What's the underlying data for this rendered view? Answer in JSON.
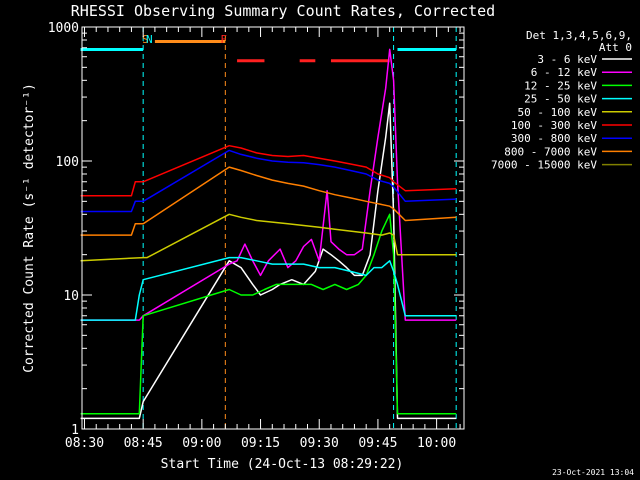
{
  "chart_data": {
    "type": "line",
    "title": "RHESSI Observing Summary Count Rates, Corrected",
    "xlabel": "Start Time (24-Oct-13 08:29:22)",
    "ylabel": "Corrected Count Rate (s⁻¹ detector⁻¹)",
    "y_scale": "log",
    "ylim": [
      1,
      1000
    ],
    "y_ticks": [
      {
        "value": 1,
        "label": "1"
      },
      {
        "value": 10,
        "label": "10"
      },
      {
        "value": 100,
        "label": "100"
      },
      {
        "value": 1000,
        "label": "1000"
      }
    ],
    "x_range": [
      "08:29:22",
      "10:07:00"
    ],
    "x_ticks": [
      "08:30",
      "08:45",
      "09:00",
      "09:15",
      "09:30",
      "09:45",
      "10:00"
    ],
    "legend": {
      "placement": "top-right",
      "header": [
        "Det 1,3,4,5,6,9,",
        "Att 0"
      ]
    },
    "flags": [
      {
        "label": "S",
        "time": "08:46",
        "color": "#ff8c1a"
      },
      {
        "label": "N",
        "time": "08:47",
        "color": "#00ffff"
      },
      {
        "label": "F",
        "time": "09:06",
        "color": "#ff2020"
      }
    ],
    "flag_bars": [
      {
        "name": "SAA",
        "color": "#ff8c1a",
        "intervals": [
          [
            "08:48",
            "09:06"
          ]
        ],
        "level": 780
      },
      {
        "name": "Night",
        "color": "#00ffff",
        "intervals": [
          [
            "08:29",
            "08:45"
          ],
          [
            "09:50",
            "10:05"
          ]
        ],
        "level": 680
      },
      {
        "name": "Flare",
        "color": "#ff2020",
        "intervals": [
          [
            "09:09",
            "09:16"
          ],
          [
            "09:25",
            "09:29"
          ],
          [
            "09:33",
            "09:48"
          ]
        ],
        "level": 560
      }
    ],
    "boundaries": [
      {
        "time": "08:45",
        "color": "#00ffff"
      },
      {
        "time": "09:06",
        "color": "#ff8c1a"
      },
      {
        "time": "09:49",
        "color": "#00ffff"
      },
      {
        "time": "10:05",
        "color": "#00ffff"
      }
    ],
    "series": [
      {
        "name": "3 - 6 keV",
        "color": "#ffffff",
        "points": [
          [
            "08:29",
            1.2
          ],
          [
            "08:44",
            1.2
          ],
          [
            "08:45",
            1.6
          ],
          [
            "09:07",
            18
          ],
          [
            "09:10",
            16
          ],
          [
            "09:13",
            12
          ],
          [
            "09:15",
            10
          ],
          [
            "09:18",
            11
          ],
          [
            "09:20",
            12
          ],
          [
            "09:23",
            13
          ],
          [
            "09:26",
            12
          ],
          [
            "09:29",
            15
          ],
          [
            "09:31",
            22
          ],
          [
            "09:33",
            20
          ],
          [
            "09:35",
            18
          ],
          [
            "09:37",
            16
          ],
          [
            "09:39",
            14
          ],
          [
            "09:41",
            14
          ],
          [
            "09:43",
            20
          ],
          [
            "09:45",
            60
          ],
          [
            "09:47",
            150
          ],
          [
            "09:48",
            270
          ],
          [
            "09:49",
            40
          ],
          [
            "09:50",
            1.2
          ],
          [
            "10:05",
            1.2
          ]
        ]
      },
      {
        "name": "6 - 12 keV",
        "color": "#ff00ff",
        "points": [
          [
            "08:29",
            6.5
          ],
          [
            "08:44",
            6.5
          ],
          [
            "08:45",
            7
          ],
          [
            "09:07",
            17
          ],
          [
            "09:09",
            18
          ],
          [
            "09:11",
            24
          ],
          [
            "09:13",
            18
          ],
          [
            "09:15",
            14
          ],
          [
            "09:17",
            18
          ],
          [
            "09:20",
            22
          ],
          [
            "09:22",
            16
          ],
          [
            "09:24",
            18
          ],
          [
            "09:26",
            23
          ],
          [
            "09:28",
            26
          ],
          [
            "09:30",
            18
          ],
          [
            "09:32",
            60
          ],
          [
            "09:33",
            25
          ],
          [
            "09:35",
            22
          ],
          [
            "09:37",
            20
          ],
          [
            "09:39",
            20
          ],
          [
            "09:41",
            22
          ],
          [
            "09:43",
            60
          ],
          [
            "09:45",
            150
          ],
          [
            "09:47",
            350
          ],
          [
            "09:48",
            680
          ],
          [
            "09:49",
            400
          ],
          [
            "09:50",
            70
          ],
          [
            "09:52",
            6.5
          ],
          [
            "10:05",
            6.5
          ]
        ]
      },
      {
        "name": "12 - 25 keV",
        "color": "#00ff00",
        "points": [
          [
            "08:29",
            1.3
          ],
          [
            "08:44",
            1.3
          ],
          [
            "08:45",
            7
          ],
          [
            "09:07",
            11
          ],
          [
            "09:10",
            10
          ],
          [
            "09:13",
            10
          ],
          [
            "09:16",
            11
          ],
          [
            "09:19",
            12
          ],
          [
            "09:22",
            12
          ],
          [
            "09:25",
            12
          ],
          [
            "09:28",
            12
          ],
          [
            "09:31",
            11
          ],
          [
            "09:34",
            12
          ],
          [
            "09:37",
            11
          ],
          [
            "09:40",
            12
          ],
          [
            "09:42",
            14
          ],
          [
            "09:44",
            20
          ],
          [
            "09:46",
            30
          ],
          [
            "09:48",
            40
          ],
          [
            "09:49",
            20
          ],
          [
            "09:50",
            1.3
          ],
          [
            "10:05",
            1.3
          ]
        ]
      },
      {
        "name": "25 - 50 keV",
        "color": "#00ffff",
        "points": [
          [
            "08:29",
            6.5
          ],
          [
            "08:43",
            6.5
          ],
          [
            "08:44",
            10
          ],
          [
            "08:45",
            13
          ],
          [
            "09:07",
            19
          ],
          [
            "09:10",
            19
          ],
          [
            "09:14",
            18
          ],
          [
            "09:18",
            17
          ],
          [
            "09:22",
            17
          ],
          [
            "09:26",
            17
          ],
          [
            "09:30",
            16
          ],
          [
            "09:34",
            16
          ],
          [
            "09:38",
            15
          ],
          [
            "09:42",
            14
          ],
          [
            "09:44",
            16
          ],
          [
            "09:46",
            16
          ],
          [
            "09:48",
            18
          ],
          [
            "09:49",
            15
          ],
          [
            "09:50",
            12
          ],
          [
            "09:52",
            7
          ],
          [
            "10:05",
            7
          ]
        ]
      },
      {
        "name": "50 - 100 keV",
        "color": "#cccc00",
        "points": [
          [
            "08:29",
            18
          ],
          [
            "08:45",
            19
          ],
          [
            "08:46",
            19
          ],
          [
            "09:07",
            40
          ],
          [
            "09:10",
            38
          ],
          [
            "09:14",
            36
          ],
          [
            "09:18",
            35
          ],
          [
            "09:22",
            34
          ],
          [
            "09:26",
            33
          ],
          [
            "09:30",
            32
          ],
          [
            "09:34",
            31
          ],
          [
            "09:38",
            30
          ],
          [
            "09:42",
            29
          ],
          [
            "09:46",
            28
          ],
          [
            "09:48",
            29
          ],
          [
            "09:49",
            28
          ],
          [
            "09:50",
            20
          ],
          [
            "10:05",
            20
          ]
        ]
      },
      {
        "name": "100 - 300 keV",
        "color": "#ff0000",
        "points": [
          [
            "08:29",
            55
          ],
          [
            "08:42",
            55
          ],
          [
            "08:43",
            70
          ],
          [
            "08:45",
            70
          ],
          [
            "09:07",
            130
          ],
          [
            "09:10",
            125
          ],
          [
            "09:14",
            115
          ],
          [
            "09:18",
            110
          ],
          [
            "09:22",
            108
          ],
          [
            "09:26",
            110
          ],
          [
            "09:30",
            105
          ],
          [
            "09:34",
            100
          ],
          [
            "09:38",
            95
          ],
          [
            "09:42",
            90
          ],
          [
            "09:45",
            80
          ],
          [
            "09:48",
            75
          ],
          [
            "09:49",
            70
          ],
          [
            "09:52",
            60
          ],
          [
            "10:05",
            62
          ]
        ]
      },
      {
        "name": "300 - 800 keV",
        "color": "#0000ff",
        "points": [
          [
            "08:29",
            42
          ],
          [
            "08:42",
            42
          ],
          [
            "08:43",
            50
          ],
          [
            "08:45",
            50
          ],
          [
            "09:07",
            120
          ],
          [
            "09:10",
            112
          ],
          [
            "09:14",
            105
          ],
          [
            "09:18",
            100
          ],
          [
            "09:22",
            98
          ],
          [
            "09:26",
            97
          ],
          [
            "09:30",
            94
          ],
          [
            "09:34",
            90
          ],
          [
            "09:38",
            85
          ],
          [
            "09:42",
            80
          ],
          [
            "09:45",
            72
          ],
          [
            "09:48",
            68
          ],
          [
            "09:49",
            64
          ],
          [
            "09:52",
            50
          ],
          [
            "10:05",
            52
          ]
        ]
      },
      {
        "name": "800 - 7000 keV",
        "color": "#ff7f00",
        "points": [
          [
            "08:29",
            28
          ],
          [
            "08:42",
            28
          ],
          [
            "08:43",
            34
          ],
          [
            "08:45",
            34
          ],
          [
            "09:07",
            90
          ],
          [
            "09:10",
            85
          ],
          [
            "09:14",
            78
          ],
          [
            "09:18",
            72
          ],
          [
            "09:22",
            68
          ],
          [
            "09:26",
            65
          ],
          [
            "09:30",
            60
          ],
          [
            "09:34",
            56
          ],
          [
            "09:38",
            53
          ],
          [
            "09:42",
            50
          ],
          [
            "09:45",
            48
          ],
          [
            "09:48",
            46
          ],
          [
            "09:49",
            44
          ],
          [
            "09:52",
            36
          ],
          [
            "10:05",
            38
          ]
        ]
      },
      {
        "name": "7000 - 15000 keV",
        "color": "#808000",
        "points": []
      }
    ]
  },
  "footer": {
    "timestamp": "23-Oct-2021 13:04"
  }
}
